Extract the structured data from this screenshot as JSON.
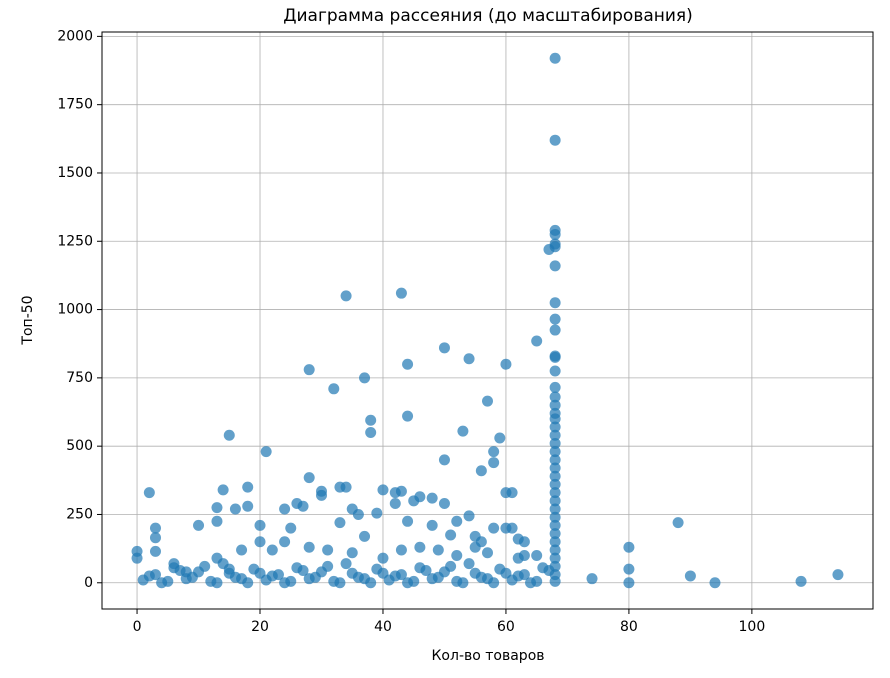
{
  "chart_data": {
    "type": "scatter",
    "title": "Диаграмма рассеяния (до масштабирования)",
    "x_label": "Кол-во товаров",
    "y_label": "Топ-50",
    "color": "#1f77b4",
    "grid": true,
    "xlim": [
      -5.7,
      119.7
    ],
    "ylim": [
      -96,
      2016
    ],
    "xticks": [
      0,
      20,
      40,
      60,
      80,
      100
    ],
    "yticks": [
      0,
      250,
      500,
      750,
      1000,
      1250,
      1500,
      1750,
      2000
    ],
    "x": [
      68,
      68,
      68,
      68,
      68,
      68,
      68,
      68,
      68,
      68,
      68,
      68,
      68,
      68,
      68,
      68,
      68,
      68,
      68,
      68,
      68,
      68,
      68,
      68,
      68,
      68,
      68,
      68,
      68,
      68,
      68,
      68,
      68,
      68,
      68,
      68,
      68,
      68,
      67,
      65,
      34,
      43,
      28,
      32,
      37,
      44,
      50,
      54,
      60,
      15,
      21,
      38,
      38,
      44,
      53,
      57,
      59,
      58,
      58,
      56,
      50,
      60,
      61,
      2,
      14,
      18,
      18,
      16,
      20,
      10,
      3,
      3,
      3,
      0,
      0,
      13,
      13,
      24,
      26,
      27,
      28,
      30,
      30,
      33,
      34,
      33,
      35,
      36,
      39,
      40,
      42,
      43,
      44,
      42,
      45,
      46,
      48,
      50,
      48,
      51,
      52,
      54,
      55,
      56,
      58,
      60,
      61,
      62,
      63,
      62,
      74,
      80,
      80,
      80,
      88,
      90,
      94,
      108,
      114,
      6,
      8,
      13,
      15,
      17,
      20,
      22,
      25,
      24,
      28,
      31,
      35,
      37,
      40,
      43,
      46,
      49,
      52,
      55,
      57,
      63,
      65,
      1,
      3,
      5,
      7,
      9,
      11,
      13,
      15,
      17,
      19,
      21,
      23,
      25,
      27,
      29,
      31,
      33,
      35,
      37,
      39,
      41,
      43,
      45,
      47,
      49,
      51,
      53,
      55,
      57,
      59,
      61,
      63,
      65,
      67,
      2,
      4,
      6,
      8,
      10,
      12,
      14,
      16,
      18,
      20,
      22,
      24,
      26,
      28,
      30,
      32,
      34,
      36,
      38,
      40,
      42,
      44,
      46,
      48,
      50,
      52,
      54,
      56,
      58,
      60,
      62,
      64,
      66
    ],
    "values": [
      1920,
      1620,
      1290,
      1275,
      1240,
      1230,
      1160,
      1025,
      965,
      925,
      830,
      825,
      775,
      715,
      680,
      650,
      620,
      600,
      570,
      540,
      510,
      480,
      450,
      420,
      390,
      360,
      330,
      300,
      270,
      240,
      210,
      180,
      150,
      120,
      90,
      60,
      30,
      5,
      1220,
      885,
      1050,
      1060,
      780,
      710,
      750,
      800,
      860,
      820,
      800,
      540,
      480,
      595,
      550,
      610,
      555,
      665,
      530,
      480,
      440,
      410,
      450,
      330,
      330,
      330,
      340,
      350,
      280,
      270,
      210,
      210,
      200,
      165,
      115,
      115,
      90,
      275,
      225,
      270,
      290,
      280,
      385,
      335,
      320,
      350,
      350,
      220,
      270,
      250,
      255,
      340,
      330,
      335,
      225,
      290,
      300,
      315,
      310,
      290,
      210,
      175,
      225,
      245,
      170,
      150,
      200,
      200,
      200,
      160,
      150,
      90,
      15,
      130,
      50,
      0,
      220,
      25,
      0,
      5,
      30,
      70,
      40,
      90,
      50,
      120,
      150,
      120,
      200,
      150,
      130,
      120,
      110,
      170,
      90,
      120,
      130,
      120,
      100,
      130,
      110,
      100,
      100,
      10,
      30,
      5,
      45,
      20,
      60,
      0,
      35,
      15,
      50,
      10,
      30,
      5,
      45,
      20,
      60,
      0,
      35,
      15,
      50,
      10,
      30,
      5,
      45,
      20,
      60,
      0,
      35,
      15,
      50,
      10,
      30,
      5,
      45,
      25,
      0,
      55,
      15,
      40,
      5,
      70,
      20,
      0,
      35,
      25,
      0,
      55,
      15,
      40,
      5,
      70,
      20,
      0,
      35,
      25,
      0,
      55,
      15,
      40,
      5,
      70,
      20,
      0,
      35,
      25,
      0,
      55
    ]
  }
}
